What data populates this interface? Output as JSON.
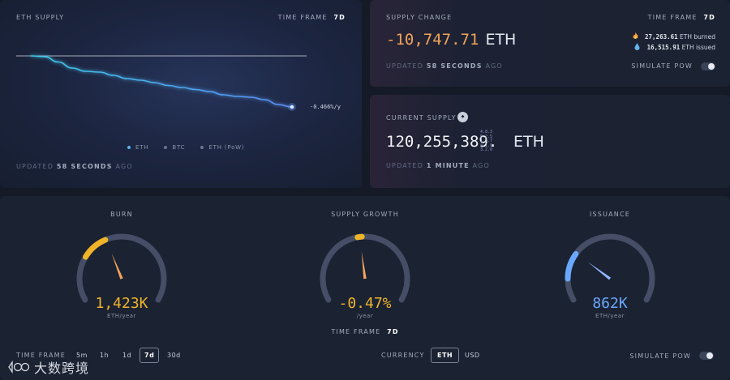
{
  "supply_panel": {
    "title": "ETH SUPPLY",
    "timeframe_label": "TIME FRAME",
    "timeframe_value": "7d",
    "change_label": "-0.466%/y",
    "legend": [
      {
        "label": "ETH",
        "color": "#5bb3f5"
      },
      {
        "label": "BTC",
        "color": "#6b7489"
      },
      {
        "label": "ETH (PoW)",
        "color": "#6b7489"
      }
    ],
    "updated_prefix": "UPDATED",
    "updated_value": "58 SECONDS",
    "updated_suffix": "AGO"
  },
  "supply_change": {
    "title": "SUPPLY CHANGE",
    "timeframe_label": "TIME FRAME",
    "timeframe_value": "7d",
    "amount": "-10,747.71",
    "unit": "ETH",
    "burned_amount": "27,263.61",
    "burned_label": "ETH burned",
    "issued_amount": "16,515.91",
    "issued_label": "ETH issued",
    "updated_prefix": "UPDATED",
    "updated_value": "58 SECONDS",
    "updated_suffix": "AGO",
    "simulate_label": "SIMULATE PoW",
    "burn_icon": "flame-icon",
    "issue_icon": "droplet-icon"
  },
  "current_supply": {
    "title": "CURRENT SUPPLY",
    "amount": "120,255,389.",
    "decimals": [
      "4.8.3",
      "5.2.5",
      "1.7.7",
      "4.1.9",
      "3.2.0"
    ],
    "unit": "ETH",
    "updated_prefix": "UPDATED",
    "updated_value": "1 MINUTE",
    "updated_suffix": "AGO",
    "badge_icon": "coin-icon"
  },
  "gauges": [
    {
      "title": "BURN",
      "value": "1,423K",
      "unit": "ETH/year",
      "color": "#f0b429",
      "level": 0.33
    },
    {
      "title": "SUPPLY GROWTH",
      "value": "-0.47%",
      "unit": "/year",
      "color": "#f0b429",
      "level": 0.47
    },
    {
      "title": "ISSUANCE",
      "value": "862K",
      "unit": "ETH/year",
      "color": "#6aa8ff",
      "level": 0.2
    }
  ],
  "gauges_timeframe": {
    "label": "TIME FRAME",
    "value": "7d"
  },
  "footer": {
    "timeframe_label": "TIME FRAME",
    "timeframes": [
      "5m",
      "1h",
      "1d",
      "7d",
      "30d"
    ],
    "selected_timeframe": "7d",
    "currency_label": "CURRENCY",
    "currencies": [
      "ETH",
      "USD"
    ],
    "selected_currency": "ETH",
    "simulate_label": "SIMULATE PoW"
  },
  "watermark": {
    "text": "大数跨境",
    "logo_icon": "logo-icon"
  },
  "chart_data": {
    "type": "line",
    "series": [
      {
        "name": "ETH",
        "values": [
          100.0,
          99.98,
          99.85,
          99.7,
          99.62,
          99.6,
          99.52,
          99.44,
          99.4,
          99.34,
          99.27,
          99.22,
          99.17,
          99.12,
          99.04,
          99.0,
          98.98,
          98.92,
          98.8,
          98.74
        ]
      }
    ],
    "end_annotation": "-0.466%/y",
    "grid": false,
    "legend_position": "bottom-center"
  }
}
